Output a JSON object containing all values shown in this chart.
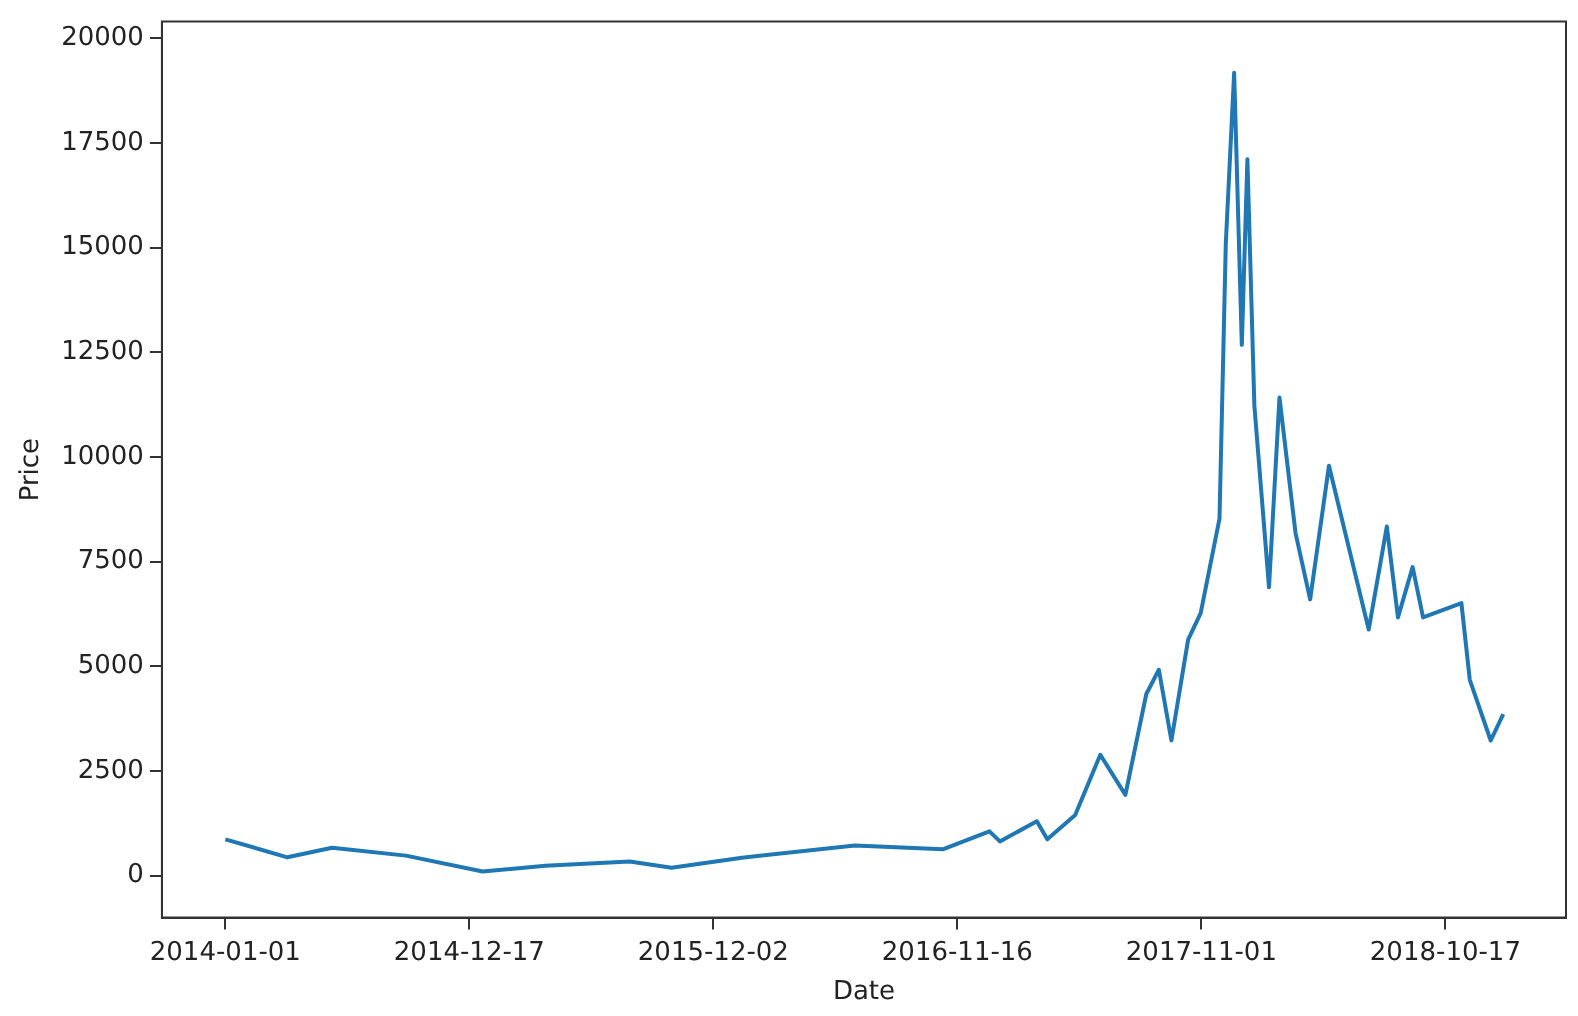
{
  "chart_data": {
    "type": "line",
    "xlabel": "Date",
    "ylabel": "Price",
    "x": [
      "2014-01-01",
      "2014-03-31",
      "2014-06-03",
      "2014-09-17",
      "2015-01-05",
      "2015-04-05",
      "2015-08-04",
      "2015-10-03",
      "2016-01-12",
      "2016-06-22",
      "2016-10-26",
      "2017-01-01",
      "2017-01-16",
      "2017-03-10",
      "2017-03-25",
      "2017-05-04",
      "2017-06-09",
      "2017-07-15",
      "2017-08-14",
      "2017-09-01",
      "2017-09-19",
      "2017-10-13",
      "2017-10-31",
      "2017-11-27",
      "2017-12-06",
      "2017-12-18",
      "2017-12-29",
      "2018-01-06",
      "2018-01-16",
      "2018-02-06",
      "2018-02-21",
      "2018-03-16",
      "2018-04-06",
      "2018-05-03",
      "2018-06-29",
      "2018-07-25",
      "2018-08-10",
      "2018-08-31",
      "2018-09-15",
      "2018-11-09",
      "2018-11-21",
      "2018-12-21",
      "2019-01-08"
    ],
    "series": [
      {
        "color": "#1f77b4",
        "values": [
          870,
          440,
          670,
          480,
          100,
          240,
          340,
          190,
          430,
          720,
          630,
          1060,
          820,
          1300,
          870,
          1450,
          2890,
          1930,
          4340,
          4920,
          3230,
          5640,
          6270,
          8530,
          15090,
          19180,
          12680,
          17110,
          11230,
          6890,
          11420,
          8190,
          6600,
          9790,
          5880,
          8340,
          6170,
          7370,
          6170,
          6510,
          4680,
          3230,
          3860
        ]
      }
    ],
    "xlim": [
      "2013-10-02",
      "2019-04-08"
    ],
    "xticks": [
      "2014-01-01",
      "2014-12-17",
      "2015-12-02",
      "2016-11-16",
      "2017-11-01",
      "2018-10-17"
    ],
    "ylim": [
      -1000,
      20400
    ],
    "yticks": [
      0,
      2500,
      5000,
      7500,
      10000,
      12500,
      15000,
      17500,
      20000
    ],
    "grid": false,
    "legend": false,
    "marker": "none",
    "line_style": "solid"
  }
}
